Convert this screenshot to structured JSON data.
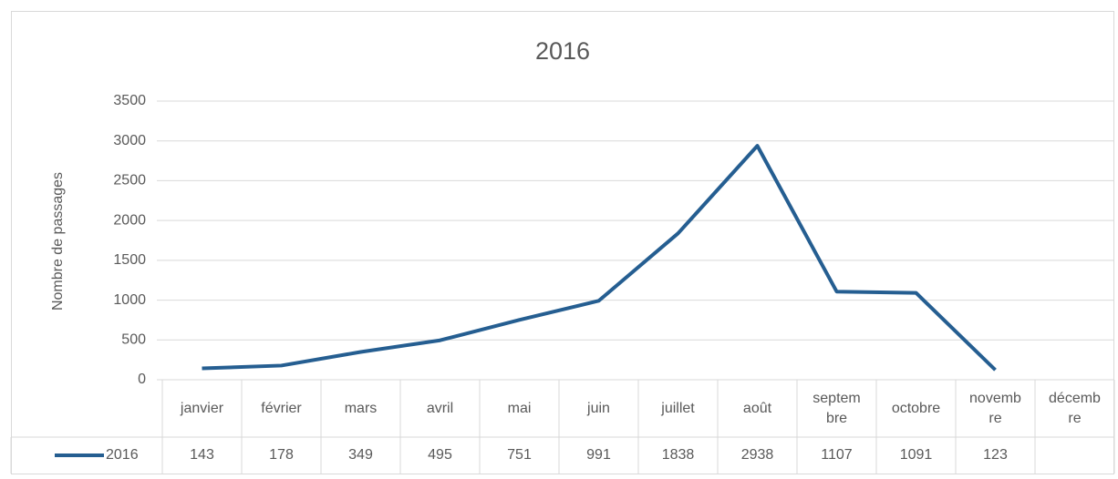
{
  "chart_data": {
    "type": "line",
    "title": "2016",
    "y_label": "Nombre de passages",
    "categories": [
      "janvier",
      "février",
      "mars",
      "avril",
      "mai",
      "juin",
      "juillet",
      "août",
      "septembre",
      "octobre",
      "novembre",
      "décembre"
    ],
    "series": [
      {
        "name": "2016",
        "color": "#255e91",
        "values": [
          143,
          178,
          349,
          495,
          751,
          991,
          1838,
          2938,
          1107,
          1091,
          123,
          null
        ]
      }
    ],
    "ylim": [
      0,
      3500
    ],
    "yticks": [
      0,
      500,
      1000,
      1500,
      2000,
      2500,
      3000,
      3500
    ],
    "grid": true,
    "data_table": true
  }
}
